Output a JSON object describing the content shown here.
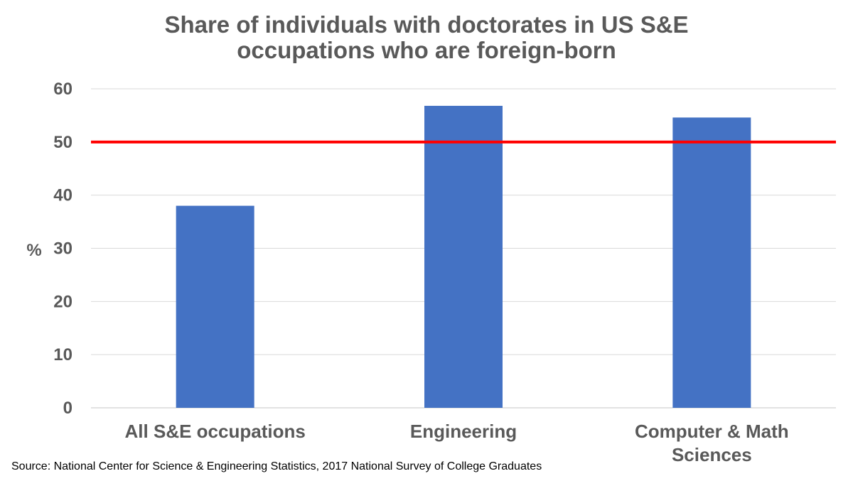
{
  "chart_data": {
    "type": "bar",
    "title_lines": [
      "Share of individuals with doctorates in US S&E",
      "occupations who are foreign-born"
    ],
    "categories": [
      [
        "All S&E occupations"
      ],
      [
        "Engineering"
      ],
      [
        "Computer & Math",
        "Sciences"
      ]
    ],
    "values": [
      38,
      56.8,
      54.6
    ],
    "ylabel": "%",
    "ylim": [
      0,
      60
    ],
    "yticks": [
      0,
      10,
      20,
      30,
      40,
      50,
      60
    ],
    "grid": true,
    "reference_line": {
      "value": 50,
      "color": "#ff0000"
    },
    "bar_color": "#4472c4",
    "grid_color": "#d9d9d9",
    "text_color": "#595959"
  },
  "source": "Source: National Center for Science & Engineering Statistics, 2017 National Survey of College Graduates"
}
